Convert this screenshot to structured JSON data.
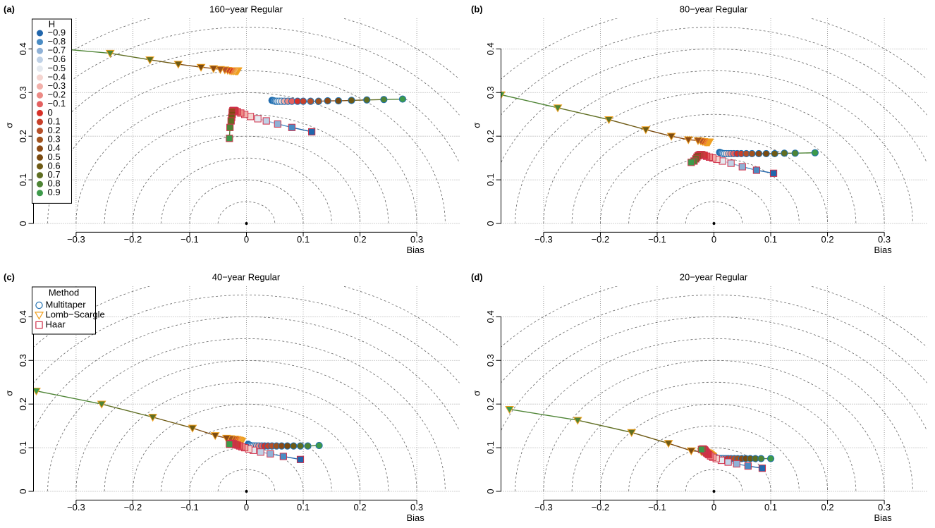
{
  "chart_data": [
    {
      "type": "scatter",
      "panel_label": "(a)",
      "title": "160−year Regular",
      "xlabel": "Bias",
      "ylabel": "σ",
      "xlim": [
        -0.375,
        0.375
      ],
      "ylim": [
        -0.02,
        0.47
      ],
      "xticks": [
        {
          "value": -0.3,
          "label": "−0.3"
        },
        {
          "value": -0.2,
          "label": "−0.2"
        },
        {
          "value": -0.1,
          "label": "−0.1"
        },
        0,
        0.1,
        0.2,
        0.3
      ],
      "yticks": [
        0,
        0.1,
        0.2,
        0.3,
        0.4
      ],
      "grid": true,
      "circle_radii": [
        0.05,
        0.1,
        0.15,
        0.2,
        0.25,
        0.3,
        0.35,
        0.4,
        0.45,
        0.5
      ],
      "series": [
        {
          "x": [
            0.045,
            0.048,
            0.051,
            0.054,
            0.058,
            0.062,
            0.067,
            0.073,
            0.08,
            0.09,
            0.1,
            0.113,
            0.127,
            0.143,
            0.162,
            0.185,
            0.212,
            0.242,
            0.275
          ],
          "y": [
            0.282,
            0.281,
            0.28,
            0.28,
            0.28,
            0.28,
            0.28,
            0.28,
            0.28,
            0.28,
            0.28,
            0.28,
            0.28,
            0.281,
            0.281,
            0.282,
            0.283,
            0.284,
            0.285
          ]
        },
        {
          "x": [
            -0.015,
            -0.016,
            -0.017,
            -0.018,
            -0.019,
            -0.02,
            -0.022,
            -0.024,
            -0.026,
            -0.029,
            -0.033,
            -0.038,
            -0.046,
            -0.058,
            -0.08,
            -0.12,
            -0.17,
            -0.24,
            -0.37
          ],
          "y": [
            0.35,
            0.35,
            0.35,
            0.35,
            0.35,
            0.35,
            0.35,
            0.35,
            0.35,
            0.35,
            0.351,
            0.352,
            0.353,
            0.355,
            0.358,
            0.365,
            0.375,
            0.39,
            0.405
          ]
        },
        {
          "x": [
            0.115,
            0.08,
            0.055,
            0.035,
            0.02,
            0.007,
            -0.003,
            -0.01,
            -0.016,
            -0.02,
            -0.022,
            -0.023,
            -0.024,
            -0.025,
            -0.025,
            -0.026,
            -0.027,
            -0.029,
            -0.03
          ],
          "y": [
            0.21,
            0.22,
            0.228,
            0.235,
            0.24,
            0.245,
            0.25,
            0.253,
            0.256,
            0.258,
            0.259,
            0.259,
            0.258,
            0.255,
            0.25,
            0.243,
            0.235,
            0.22,
            0.195
          ]
        }
      ],
      "legend": {
        "kind": "h",
        "title": "H",
        "labels": [
          "−0.9",
          "−0.8",
          "−0.7",
          "−0.6",
          "−0.5",
          "−0.4",
          "−0.3",
          "−0.2",
          "−0.1",
          "0",
          "0.1",
          "0.2",
          "0.3",
          "0.4",
          "0.5",
          "0.6",
          "0.7",
          "0.8",
          "0.9"
        ]
      }
    },
    {
      "type": "scatter",
      "panel_label": "(b)",
      "title": "80−year Regular",
      "xlabel": "Bias",
      "ylabel": "σ",
      "xlim": [
        -0.375,
        0.375
      ],
      "ylim": [
        -0.02,
        0.47
      ],
      "xticks": [
        {
          "value": -0.3,
          "label": "−0.3"
        },
        {
          "value": -0.2,
          "label": "−0.2"
        },
        {
          "value": -0.1,
          "label": "−0.1"
        },
        0,
        0.1,
        0.2,
        0.3
      ],
      "yticks": [
        0,
        0.1,
        0.2,
        0.3,
        0.4
      ],
      "grid": true,
      "circle_radii": [
        0.05,
        0.1,
        0.15,
        0.2,
        0.25,
        0.3,
        0.35,
        0.4,
        0.45,
        0.5
      ],
      "series": [
        {
          "x": [
            0.01,
            0.012,
            0.014,
            0.016,
            0.019,
            0.022,
            0.026,
            0.03,
            0.035,
            0.041,
            0.048,
            0.057,
            0.067,
            0.079,
            0.092,
            0.107,
            0.124,
            0.143,
            0.178
          ],
          "y": [
            0.163,
            0.162,
            0.161,
            0.16,
            0.16,
            0.16,
            0.16,
            0.16,
            0.16,
            0.16,
            0.16,
            0.16,
            0.16,
            0.16,
            0.16,
            0.16,
            0.161,
            0.161,
            0.162
          ]
        },
        {
          "x": [
            -0.008,
            -0.009,
            -0.01,
            -0.011,
            -0.012,
            -0.013,
            -0.014,
            -0.015,
            -0.016,
            -0.018,
            -0.02,
            -0.023,
            -0.028,
            -0.045,
            -0.075,
            -0.12,
            -0.185,
            -0.275,
            -0.375
          ],
          "y": [
            0.187,
            0.187,
            0.187,
            0.187,
            0.187,
            0.187,
            0.187,
            0.187,
            0.187,
            0.188,
            0.188,
            0.189,
            0.19,
            0.192,
            0.2,
            0.215,
            0.238,
            0.265,
            0.295
          ]
        },
        {
          "x": [
            0.105,
            0.075,
            0.05,
            0.03,
            0.015,
            0.005,
            -0.002,
            -0.008,
            -0.013,
            -0.017,
            -0.02,
            -0.022,
            -0.024,
            -0.026,
            -0.028,
            -0.03,
            -0.032,
            -0.035,
            -0.04
          ],
          "y": [
            0.115,
            0.122,
            0.13,
            0.138,
            0.143,
            0.147,
            0.15,
            0.152,
            0.154,
            0.156,
            0.157,
            0.158,
            0.158,
            0.157,
            0.155,
            0.152,
            0.148,
            0.143,
            0.14
          ]
        }
      ]
    },
    {
      "type": "scatter",
      "panel_label": "(c)",
      "title": "40−year Regular",
      "xlabel": "Bias",
      "ylabel": "σ",
      "xlim": [
        -0.375,
        0.375
      ],
      "ylim": [
        -0.02,
        0.47
      ],
      "xticks": [
        {
          "value": -0.3,
          "label": "−0.3"
        },
        {
          "value": -0.2,
          "label": "−0.2"
        },
        {
          "value": -0.1,
          "label": "−0.1"
        },
        0,
        0.1,
        0.2,
        0.3
      ],
      "yticks": [
        0,
        0.1,
        0.2,
        0.3,
        0.4
      ],
      "grid": true,
      "circle_radii": [
        0.05,
        0.1,
        0.15,
        0.2,
        0.25,
        0.3,
        0.35,
        0.4,
        0.45,
        0.5
      ],
      "series": [
        {
          "x": [
            0.003,
            0.005,
            0.007,
            0.009,
            0.012,
            0.015,
            0.018,
            0.022,
            0.027,
            0.032,
            0.038,
            0.045,
            0.053,
            0.062,
            0.072,
            0.083,
            0.095,
            0.108,
            0.128
          ],
          "y": [
            0.108,
            0.106,
            0.105,
            0.104,
            0.104,
            0.104,
            0.104,
            0.104,
            0.104,
            0.104,
            0.104,
            0.104,
            0.104,
            0.104,
            0.104,
            0.104,
            0.104,
            0.104,
            0.105
          ]
        },
        {
          "x": [
            -0.008,
            -0.009,
            -0.01,
            -0.011,
            -0.012,
            -0.013,
            -0.014,
            -0.015,
            -0.017,
            -0.019,
            -0.021,
            -0.024,
            -0.028,
            -0.035,
            -0.055,
            -0.095,
            -0.165,
            -0.255,
            -0.37
          ],
          "y": [
            0.115,
            0.115,
            0.116,
            0.116,
            0.117,
            0.117,
            0.118,
            0.118,
            0.119,
            0.119,
            0.12,
            0.12,
            0.121,
            0.122,
            0.128,
            0.145,
            0.17,
            0.2,
            0.23
          ]
        },
        {
          "x": [
            0.095,
            0.065,
            0.042,
            0.025,
            0.012,
            0.004,
            -0.003,
            -0.008,
            -0.012,
            -0.016,
            -0.019,
            -0.021,
            -0.023,
            -0.025,
            -0.026,
            -0.027,
            -0.028,
            -0.029,
            -0.03
          ],
          "y": [
            0.073,
            0.08,
            0.086,
            0.09,
            0.094,
            0.097,
            0.1,
            0.102,
            0.104,
            0.106,
            0.107,
            0.108,
            0.109,
            0.11,
            0.11,
            0.11,
            0.109,
            0.108,
            0.108
          ]
        }
      ],
      "legend": {
        "kind": "method",
        "title": "Method",
        "entries": [
          {
            "name": "Multitaper",
            "color": "#1f6fb0",
            "marker": "circle"
          },
          {
            "name": "Lomb−Scargle",
            "color": "#f0a020",
            "marker": "triangle"
          },
          {
            "name": "Haar",
            "color": "#d0304a",
            "marker": "square"
          }
        ]
      }
    },
    {
      "type": "scatter",
      "panel_label": "(d)",
      "title": "20−year Regular",
      "xlabel": "Bias",
      "ylabel": "σ",
      "xlim": [
        -0.375,
        0.375
      ],
      "ylim": [
        -0.02,
        0.47
      ],
      "xticks": [
        {
          "value": -0.3,
          "label": "−0.3"
        },
        {
          "value": -0.2,
          "label": "−0.2"
        },
        {
          "value": -0.1,
          "label": "−0.1"
        },
        0,
        0.1,
        0.2,
        0.3
      ],
      "yticks": [
        0,
        0.1,
        0.2,
        0.3,
        0.4
      ],
      "grid": true,
      "circle_radii": [
        0.05,
        0.1,
        0.15,
        0.2,
        0.25,
        0.3,
        0.35,
        0.4,
        0.45,
        0.5
      ],
      "series": [
        {
          "x": [
            0.0,
            0.002,
            0.004,
            0.006,
            0.008,
            0.011,
            0.014,
            0.017,
            0.021,
            0.025,
            0.03,
            0.036,
            0.042,
            0.049,
            0.056,
            0.064,
            0.073,
            0.083,
            0.1
          ],
          "y": [
            0.08,
            0.078,
            0.077,
            0.076,
            0.075,
            0.075,
            0.075,
            0.075,
            0.075,
            0.075,
            0.075,
            0.075,
            0.075,
            0.075,
            0.075,
            0.075,
            0.075,
            0.075,
            0.075
          ]
        },
        {
          "x": [
            -0.002,
            -0.003,
            -0.004,
            -0.005,
            -0.006,
            -0.007,
            -0.008,
            -0.009,
            -0.01,
            -0.011,
            -0.012,
            -0.014,
            -0.017,
            -0.022,
            -0.04,
            -0.08,
            -0.145,
            -0.24,
            -0.36
          ],
          "y": [
            0.08,
            0.081,
            0.082,
            0.083,
            0.084,
            0.085,
            0.086,
            0.087,
            0.088,
            0.088,
            0.089,
            0.09,
            0.09,
            0.091,
            0.093,
            0.11,
            0.135,
            0.163,
            0.188
          ]
        },
        {
          "x": [
            0.085,
            0.06,
            0.04,
            0.025,
            0.013,
            0.004,
            -0.002,
            -0.006,
            -0.009,
            -0.011,
            -0.013,
            -0.014,
            -0.015,
            -0.016,
            -0.017,
            -0.018,
            -0.019,
            -0.02,
            -0.022
          ],
          "y": [
            0.053,
            0.058,
            0.063,
            0.067,
            0.071,
            0.075,
            0.078,
            0.081,
            0.084,
            0.086,
            0.088,
            0.09,
            0.092,
            0.094,
            0.095,
            0.096,
            0.097,
            0.097,
            0.096
          ]
        }
      ]
    }
  ],
  "h_colors": [
    "#2166ac",
    "#4a8cc4",
    "#8fb1d6",
    "#bfd1e6",
    "#e5eaf0",
    "#f5d5d0",
    "#f2b0aa",
    "#ec8a85",
    "#e46060",
    "#d73027",
    "#c7402a",
    "#b5502a",
    "#a0521d",
    "#8c4a14",
    "#7a4a10",
    "#6e5a14",
    "#5f6e22",
    "#4e8435",
    "#3d9a4a"
  ]
}
